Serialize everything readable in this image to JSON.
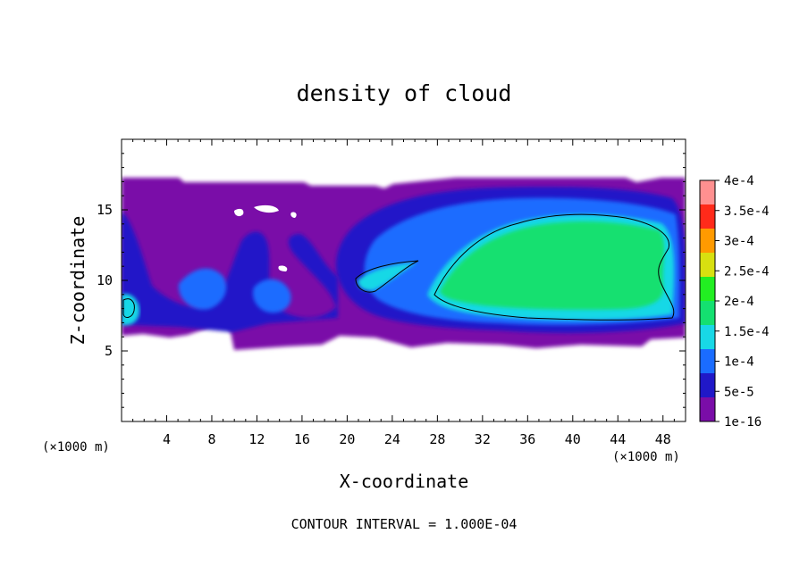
{
  "chart_data": {
    "type": "heatmap",
    "title": "density of cloud",
    "xlabel": "X-coordinate",
    "ylabel": "Z-coordinate",
    "x_unit_left": "(×1000 m)",
    "x_unit_right": "(×1000 m)",
    "xlim": [
      0,
      50
    ],
    "ylim": [
      0,
      20
    ],
    "x_ticks": [
      4,
      8,
      12,
      16,
      20,
      24,
      28,
      32,
      36,
      40,
      44,
      48
    ],
    "y_ticks": [
      5,
      10,
      15
    ],
    "footer": "CONTOUR INTERVAL = 1.000E-04",
    "colorbar": {
      "levels": [
        1e-16,
        5e-05,
        0.0001,
        0.00015,
        0.0002,
        0.00025,
        0.0003,
        0.00035,
        0.0004
      ],
      "labels": [
        "1e-16",
        "5e-5",
        "1e-4",
        "1.5e-4",
        "2e-4",
        "2.5e-4",
        "3e-4",
        "3.5e-4",
        "4e-4"
      ],
      "colors": [
        "#7a0da8",
        "#2018c8",
        "#1a6cff",
        "#18d8e6",
        "#14e070",
        "#22ee22",
        "#d8e010",
        "#ff9a00",
        "#ff2a1a",
        "#ff9090"
      ]
    },
    "contour_levels": [
      0.0001
    ],
    "region": {
      "cloud_top_z": 17.3,
      "cloud_base_z": [
        6.2,
        5.5
      ]
    },
    "features": [
      {
        "name": "main core",
        "x_center": 37,
        "z_center": 11,
        "peak": 0.0002
      },
      {
        "name": "left edge cell",
        "x_center": 1,
        "z_center": 8.2,
        "peak": 0.00012
      },
      {
        "name": "thin band",
        "x_center": 23,
        "z_center": 10.5,
        "peak": 0.00011
      }
    ]
  }
}
